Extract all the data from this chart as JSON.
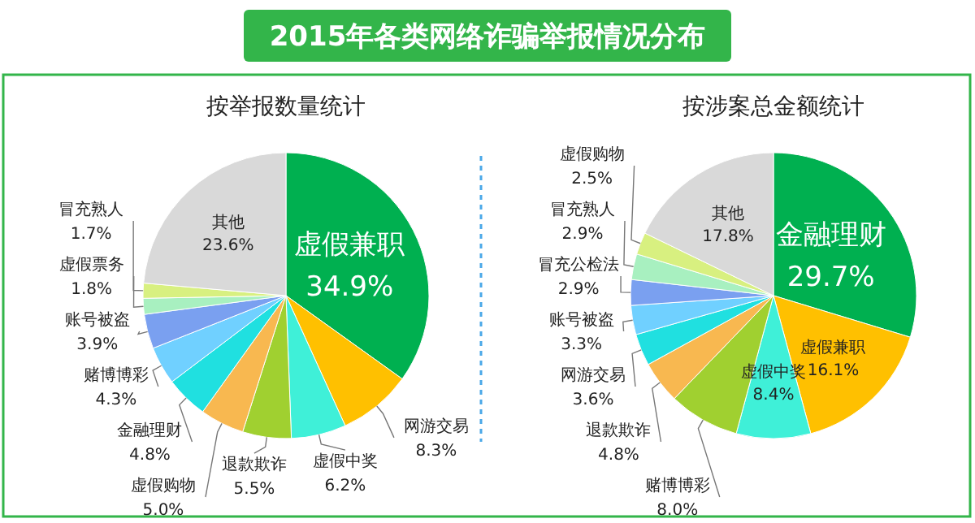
{
  "chart_data": [
    {
      "type": "pie",
      "title": "2015年各类网络诈骗举报情况分布",
      "subtitle": "按举报数量统计",
      "categories": [
        "虚假兼职",
        "网游交易",
        "虚假中奖",
        "退款欺诈",
        "虚假购物",
        "金融理财",
        "赌博博彩",
        "账号被盗",
        "虚假票务",
        "冒充熟人",
        "其他"
      ],
      "values": [
        34.9,
        8.3,
        6.2,
        5.5,
        5.0,
        4.8,
        4.3,
        3.9,
        1.8,
        1.7,
        23.6
      ],
      "colors": [
        "#00b050",
        "#ffc000",
        "#3ff0d8",
        "#a0d030",
        "#f8b850",
        "#20e0e0",
        "#70d0ff",
        "#7aa0f0",
        "#a8f0c0",
        "#d8f080",
        "#d9d9d9"
      ],
      "value_labels": [
        "34.9%",
        "8.3%",
        "6.2%",
        "5.5%",
        "5.0%",
        "4.8%",
        "4.3%",
        "3.9%",
        "1.8%",
        "1.7%",
        "23.6%"
      ]
    },
    {
      "type": "pie",
      "subtitle": "按涉案总金额统计",
      "categories": [
        "金融理财",
        "虚假兼职",
        "虚假中奖",
        "赌博博彩",
        "退款欺诈",
        "网游交易",
        "账号被盗",
        "冒充公检法",
        "冒充熟人",
        "虚假购物",
        "其他"
      ],
      "values": [
        29.7,
        16.1,
        8.4,
        8.0,
        4.8,
        3.6,
        3.3,
        2.9,
        2.9,
        2.5,
        17.8
      ],
      "colors": [
        "#00b050",
        "#ffc000",
        "#3ff0d8",
        "#a0d030",
        "#f8b850",
        "#20e0e0",
        "#70d0ff",
        "#7aa0f0",
        "#a8f0c0",
        "#d8f080",
        "#d9d9d9"
      ],
      "value_labels": [
        "29.7%",
        "16.1%",
        "8.4%",
        "8.0%",
        "4.8%",
        "3.6%",
        "3.3%",
        "2.9%",
        "2.9%",
        "2.5%",
        "17.8%"
      ]
    }
  ]
}
